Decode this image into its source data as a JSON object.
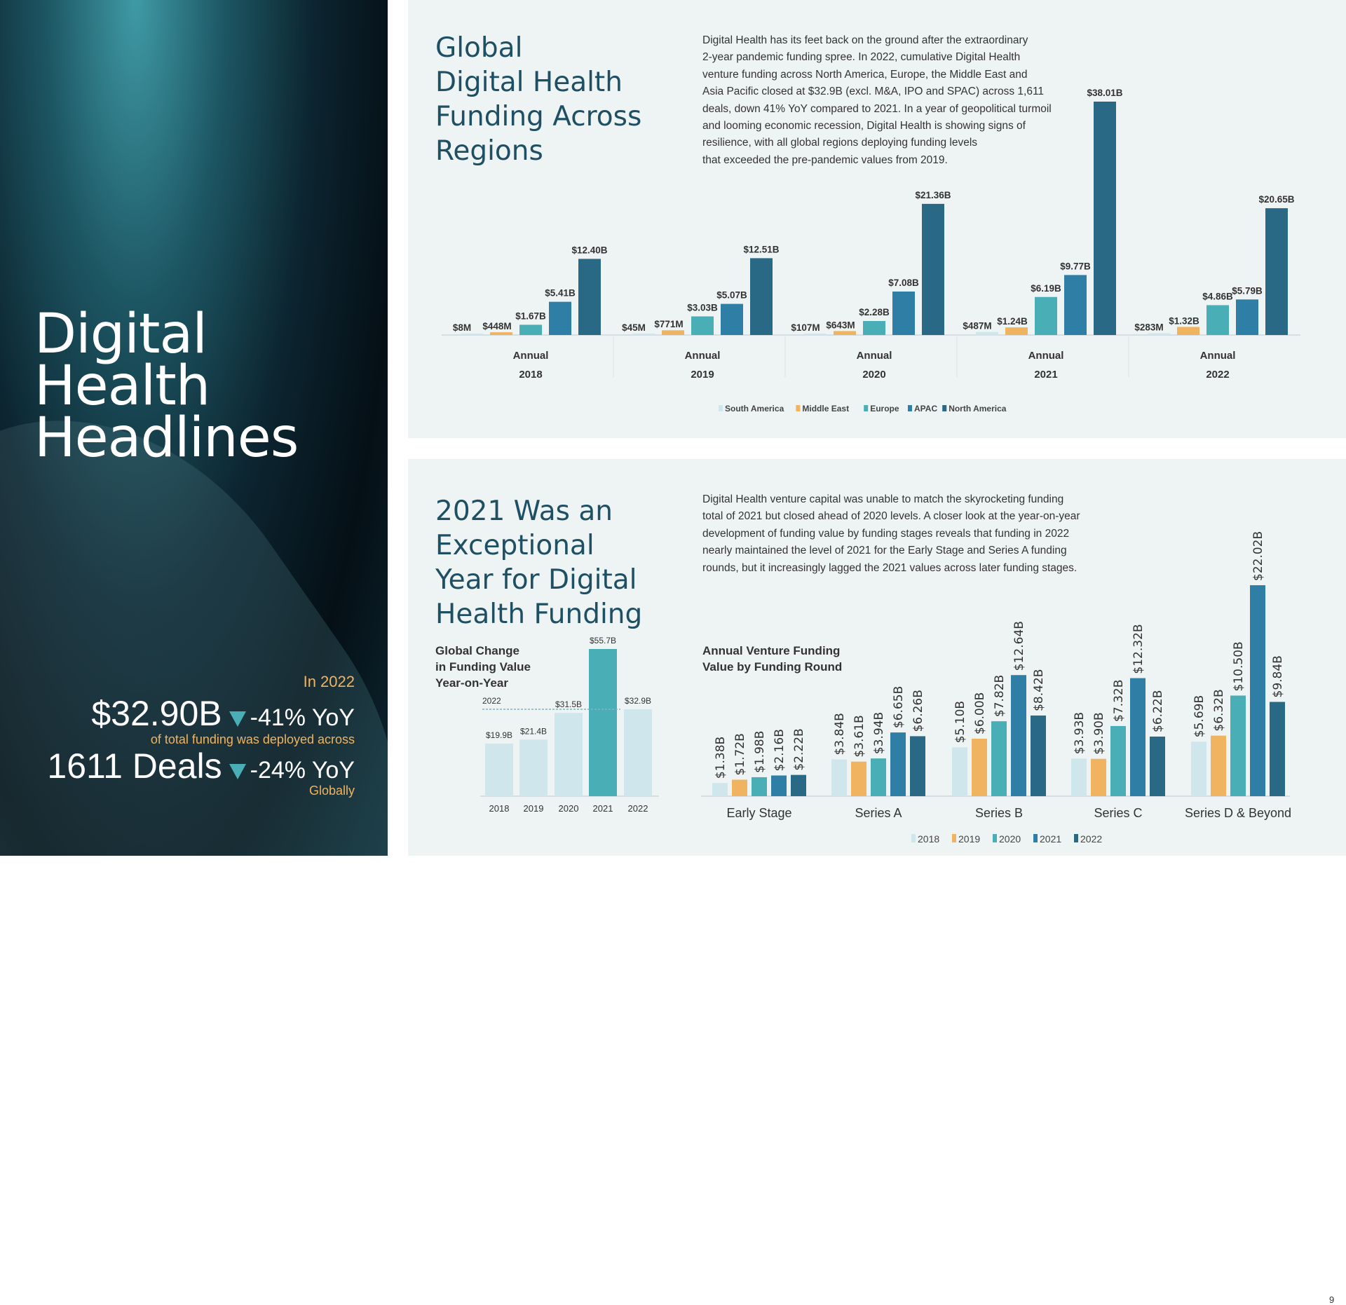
{
  "colors": {
    "south_america": "#cfe6ec",
    "middle_east": "#f0b461",
    "europe": "#4aaeb6",
    "apac": "#2e7ea6",
    "north_america": "#2a6985",
    "title": "#1e4f63",
    "accent_orange": "#f0b461"
  },
  "left": {
    "title_lines": [
      "Digital",
      "Health",
      "Headlines"
    ],
    "in_year": "In 2022",
    "funding_value": "$32.90B",
    "funding_change": "-41% YoY",
    "funding_caption": "of total funding was deployed across",
    "deals_value": "1611 Deals",
    "deals_change": "-24% YoY",
    "deals_caption": "Globally",
    "down_icon": "triangle-down-icon"
  },
  "top": {
    "title_lines": [
      "Global",
      "Digital Health",
      "Funding Across",
      "Regions"
    ],
    "paragraph_lines": [
      "Digital Health has its feet back on the ground after the extraordinary",
      "2-year pandemic funding spree. In 2022, cumulative Digital Health",
      "venture funding across North America, Europe, the Middle East and",
      "Asia Pacific closed at $32.9B (excl. M&A, IPO and SPAC) across 1,611",
      "deals, down 41% YoY compared to 2021. In a year of geopolitical turmoil",
      "and looming economic recession, Digital Health is showing signs of",
      "resilience, with all global regions deploying funding levels",
      "that exceeded the pre-pandemic values from 2019."
    ]
  },
  "bottom": {
    "title_lines": [
      "2021 Was an",
      "Exceptional",
      "Year for Digital",
      "Health Funding"
    ],
    "paragraph_lines": [
      "Digital Health venture capital was unable to match the skyrocketing funding",
      "total of 2021 but closed ahead of 2020 levels. A closer look at the year-on-year",
      "development of funding value by funding stages reveals that funding in 2022",
      "nearly maintained the level of 2021 for the Early Stage and Series A funding",
      "rounds, but it increasingly lagged the 2021 values across later funding stages."
    ],
    "page_number": "9"
  },
  "chart_data": [
    {
      "type": "bar",
      "title": "",
      "unit": "USD billions",
      "categories": [
        [
          "Annual",
          "2018"
        ],
        [
          "Annual",
          "2019"
        ],
        [
          "Annual",
          "2020"
        ],
        [
          "Annual",
          "2021"
        ],
        [
          "Annual",
          "2022"
        ]
      ],
      "series": [
        {
          "name": "South America",
          "values": [
            0.008,
            0.045,
            0.107,
            0.487,
            0.283
          ],
          "labels": [
            "$8M",
            "$45M",
            "$107M",
            "$487M",
            "$283M"
          ]
        },
        {
          "name": "Middle East",
          "values": [
            0.448,
            0.771,
            0.643,
            1.24,
            1.32
          ],
          "labels": [
            "$448M",
            "$771M",
            "$643M",
            "$1.24B",
            "$1.32B"
          ]
        },
        {
          "name": "Europe",
          "values": [
            1.67,
            3.03,
            2.28,
            6.19,
            4.86
          ],
          "labels": [
            "$1.67B",
            "$3.03B",
            "$2.28B",
            "$6.19B",
            "$4.86B"
          ]
        },
        {
          "name": "APAC",
          "values": [
            5.41,
            5.07,
            7.08,
            9.77,
            5.79
          ],
          "labels": [
            "$5.41B",
            "$5.07B",
            "$7.08B",
            "$9.77B",
            "$5.79B"
          ]
        },
        {
          "name": "North America",
          "values": [
            12.4,
            12.51,
            21.36,
            38.01,
            20.65
          ],
          "labels": [
            "$12.40B",
            "$12.51B",
            "$21.36B",
            "$38.01B",
            "$20.65B"
          ]
        }
      ],
      "legend": "bottom"
    },
    {
      "type": "bar",
      "title_lines": [
        "Global Change",
        "in Funding Value",
        "Year-on-Year"
      ],
      "categories": [
        "2018",
        "2019",
        "2020",
        "2021",
        "2022"
      ],
      "values": [
        19.9,
        21.4,
        31.5,
        55.7,
        32.9
      ],
      "labels": [
        "$19.9B",
        "$21.4B",
        "$31.5B",
        "$55.7B",
        "$32.9B"
      ],
      "highlight": "2021",
      "reference_line": {
        "label": "2022",
        "value": 32.9
      }
    },
    {
      "type": "bar",
      "title_lines": [
        "Annual Venture Funding",
        "Value by Funding Round"
      ],
      "categories": [
        "Early Stage",
        "Series A",
        "Series B",
        "Series C",
        "Series D & Beyond"
      ],
      "series": [
        {
          "name": "2018",
          "values": [
            1.38,
            3.84,
            5.1,
            3.93,
            5.69
          ],
          "labels": [
            "$1.38B",
            "$3.84B",
            "$5.10B",
            "$3.93B",
            "$5.69B"
          ]
        },
        {
          "name": "2019",
          "values": [
            1.72,
            3.61,
            6.0,
            3.9,
            6.32
          ],
          "labels": [
            "$1.72B",
            "$3.61B",
            "$6.00B",
            "$3.90B",
            "$6.32B"
          ]
        },
        {
          "name": "2020",
          "values": [
            1.98,
            3.94,
            7.82,
            7.32,
            10.5
          ],
          "labels": [
            "$1.98B",
            "$3.94B",
            "$7.82B",
            "$7.32B",
            "$10.50B"
          ]
        },
        {
          "name": "2021",
          "values": [
            2.16,
            6.65,
            12.64,
            12.32,
            22.02
          ],
          "labels": [
            "$2.16B",
            "$6.65B",
            "$12.64B",
            "$12.32B",
            "$22.02B"
          ]
        },
        {
          "name": "2022",
          "values": [
            2.22,
            6.26,
            8.42,
            6.22,
            9.84
          ],
          "labels": [
            "$2.22B",
            "$6.26B",
            "$8.42B",
            "$6.22B",
            "$9.84B"
          ]
        }
      ],
      "legend": "bottom"
    }
  ]
}
